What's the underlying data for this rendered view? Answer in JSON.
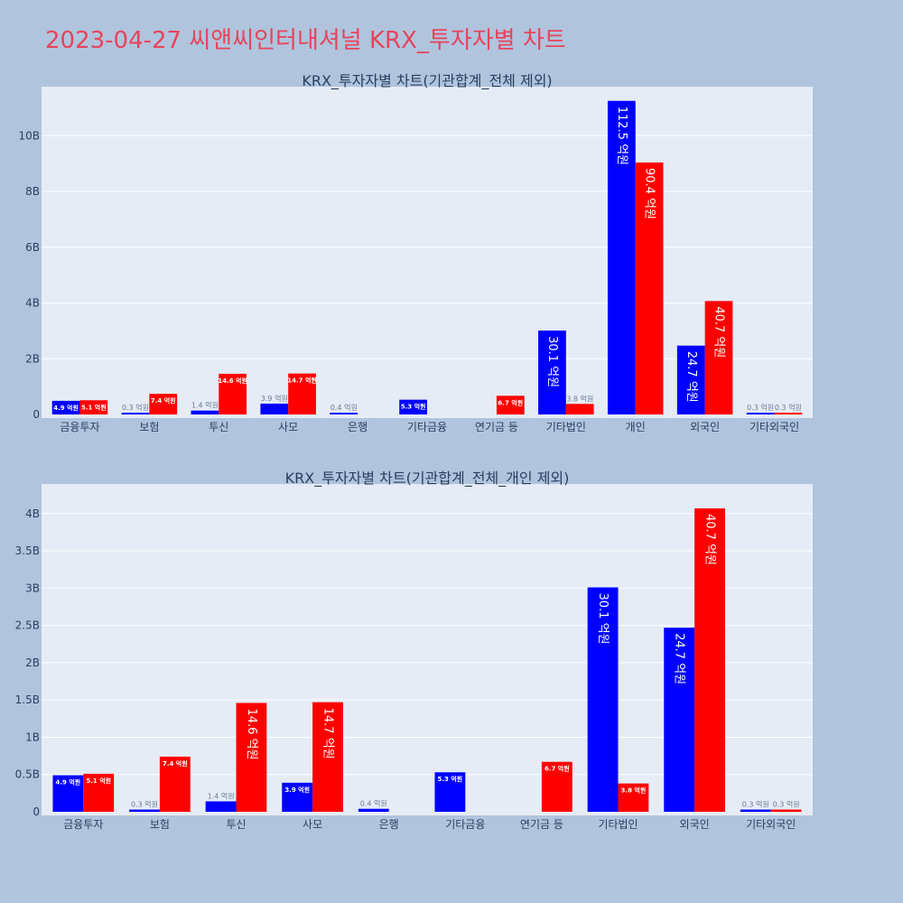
{
  "page": {
    "title": "2023-04-27 씨앤씨인터내셔널 KRX_투자자별 차트"
  },
  "colors": {
    "background": "#b0c4de",
    "plot_bg": "#e5ecf6",
    "series_a": "#0000ff",
    "series_b": "#ff0000",
    "title": "#e8445a"
  },
  "chart_data": [
    {
      "type": "bar",
      "title": "KRX_투자자별 차트(기관합계_전체 제외)",
      "categories": [
        "금융투자",
        "보험",
        "투신",
        "사모",
        "은행",
        "기타금융",
        "연기금 등",
        "기타법인",
        "개인",
        "외국인",
        "기타외국인"
      ],
      "series": [
        {
          "values": [
            0.49,
            0.03,
            0.14,
            0.39,
            0.04,
            0.53,
            0,
            3.01,
            11.25,
            2.47,
            0.03
          ],
          "labels": [
            "4.9 억원",
            "0.3 억원",
            "1.4 억원",
            "3.9 억원",
            "0.4 억원",
            "5.3 억원",
            "",
            "30.1 억원",
            "112.5 억원",
            "24.7 억원",
            "0.3 억원"
          ]
        },
        {
          "values": [
            0.51,
            0.74,
            1.46,
            1.47,
            0,
            0,
            0.67,
            0.38,
            9.04,
            4.07,
            0.03
          ],
          "labels": [
            "5.1 억원",
            "7.4 억원",
            "14.6 억원",
            "14.7 억원",
            "",
            "",
            "6.7 억원",
            "3.8 억원",
            "90.4 억원",
            "40.7 억원",
            "0.3 억원"
          ]
        }
      ],
      "ylim": [
        0,
        11.5
      ],
      "yticks": [
        0,
        2,
        4,
        6,
        8,
        10
      ],
      "ytick_labels": [
        "0",
        "2B",
        "4B",
        "6B",
        "8B",
        "10B"
      ],
      "grid": true
    },
    {
      "type": "bar",
      "title": "KRX_투자자별 차트(기관합계_전체_개인 제외)",
      "categories": [
        "금융투자",
        "보험",
        "투신",
        "사모",
        "은행",
        "기타금융",
        "연기금 등",
        "기타법인",
        "외국인",
        "기타외국인"
      ],
      "series": [
        {
          "values": [
            0.49,
            0.03,
            0.14,
            0.39,
            0.04,
            0.53,
            0,
            3.01,
            2.47,
            0.03
          ],
          "labels": [
            "4.9 억원",
            "0.3 억원",
            "1.4 억원",
            "3.9 억원",
            "0.4 억원",
            "5.3 억원",
            "",
            "30.1 억원",
            "24.7 억원",
            "0.3 억원"
          ]
        },
        {
          "values": [
            0.51,
            0.74,
            1.46,
            1.47,
            0,
            0,
            0.67,
            0.38,
            4.07,
            0.03
          ],
          "labels": [
            "5.1 억원",
            "7.4 억원",
            "14.6 억원",
            "14.7 억원",
            "",
            "",
            "6.7 억원",
            "3.8 억원",
            "40.7 억원",
            "0.3 억원"
          ]
        }
      ],
      "ylim": [
        0,
        4.3
      ],
      "yticks": [
        0,
        0.5,
        1,
        1.5,
        2,
        2.5,
        3,
        3.5,
        4
      ],
      "ytick_labels": [
        "0",
        "0.5B",
        "1B",
        "1.5B",
        "2B",
        "2.5B",
        "3B",
        "3.5B",
        "4B"
      ],
      "grid": true
    }
  ]
}
